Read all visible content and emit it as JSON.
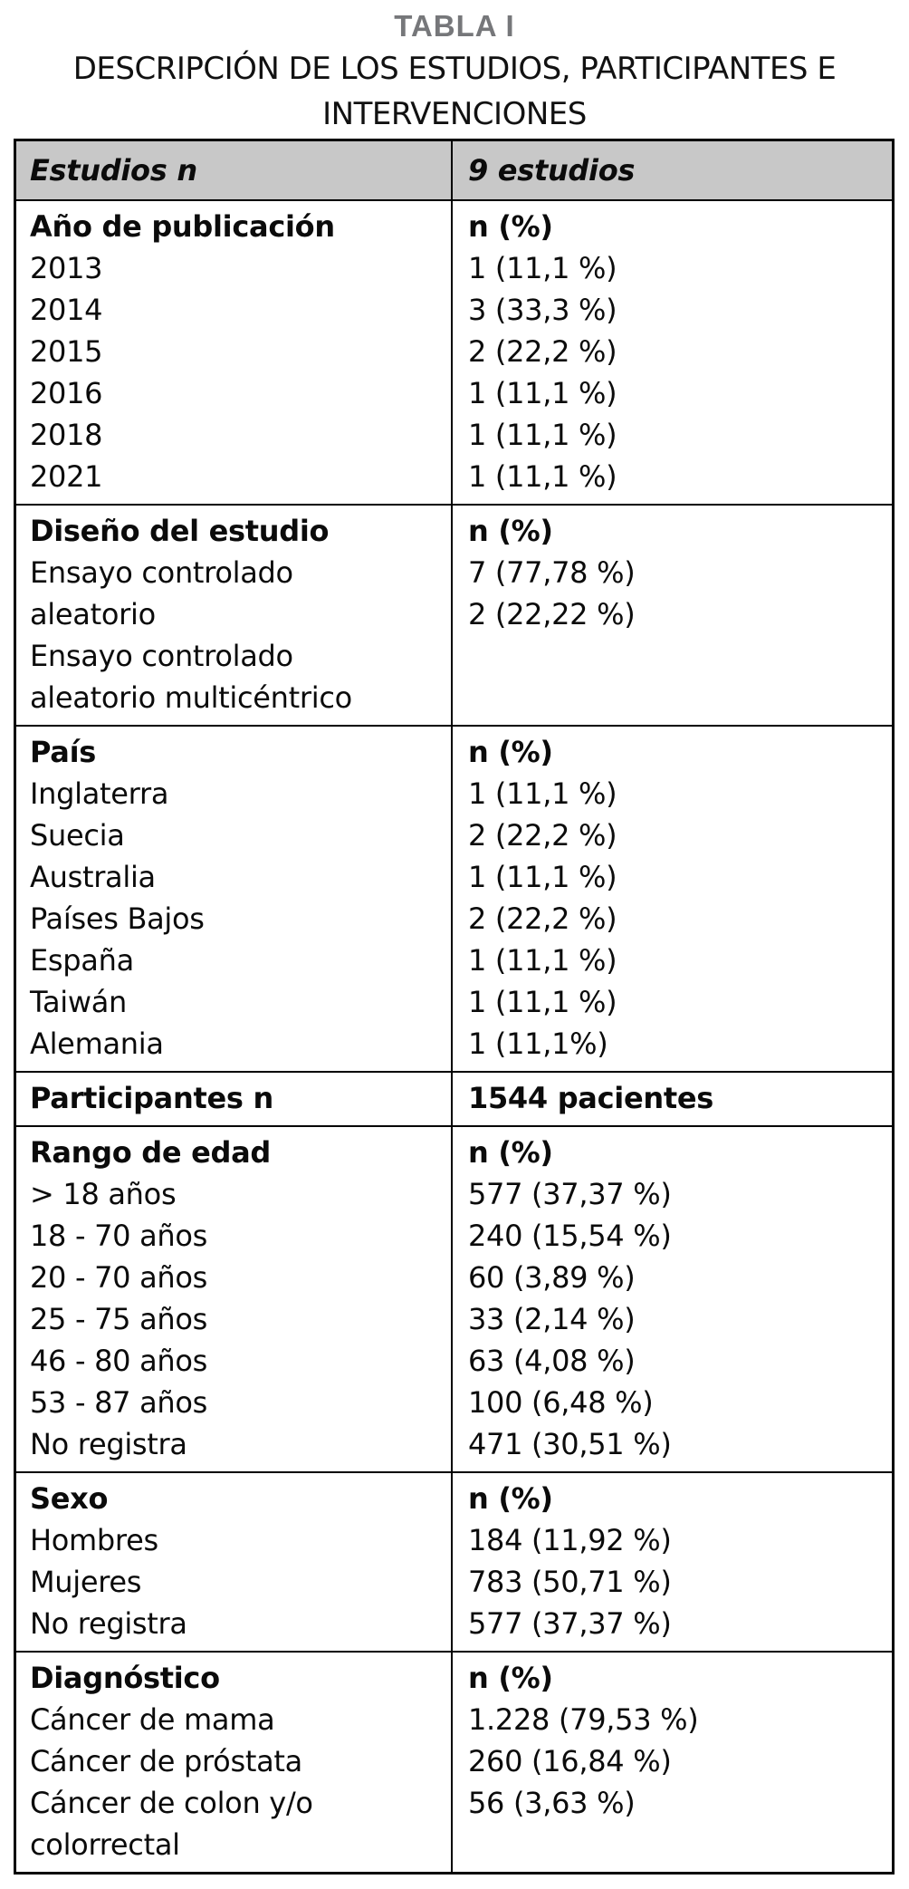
{
  "page": {
    "kicker": "TABLA I",
    "title_line1": "DESCRIPCIÓN DE LOS ESTUDIOS, PARTICIPANTES E",
    "title_line2": "INTERVENCIONES"
  },
  "colors": {
    "header_background": "#c8c8c8",
    "kicker_gray": "#76777a",
    "border": "#000000",
    "text": "#0b0b0b"
  },
  "table": {
    "header": {
      "left": "Estudios n",
      "right": "9 estudios"
    },
    "sections": [
      {
        "label": "Año de publicación",
        "value_label": "n (%)",
        "left_lines": [
          "2013",
          "2014",
          "2015",
          "2016",
          "2018",
          "2021"
        ],
        "right_lines": [
          "1 (11,1 %)",
          "3 (33,3 %)",
          "2 (22,2 %)",
          "1 (11,1 %)",
          "1 (11,1 %)",
          "1 (11,1 %)"
        ]
      },
      {
        "label": "Diseño del estudio",
        "value_label": "n (%)",
        "left_lines": [
          "Ensayo controlado",
          "aleatorio",
          "Ensayo controlado",
          "aleatorio multicéntrico"
        ],
        "right_lines": [
          "7 (77,78 %)",
          "2 (22,22 %)"
        ]
      },
      {
        "label": "País",
        "value_label": "n (%)",
        "left_lines": [
          "Inglaterra",
          "Suecia",
          "Australia",
          "Países Bajos",
          "España",
          "Taiwán",
          "Alemania"
        ],
        "right_lines": [
          "1 (11,1 %)",
          "2 (22,2 %)",
          "1 (11,1 %)",
          "2 (22,2 %)",
          "1 (11,1 %)",
          "1 (11,1 %)",
          "1 (11,1%)"
        ]
      },
      {
        "label": "Participantes n",
        "value_label": "1544 pacientes",
        "left_lines": [],
        "right_lines": []
      },
      {
        "label": "Rango de edad",
        "value_label": "n (%)",
        "left_lines": [
          "> 18 años",
          "18 - 70 años",
          "20 - 70 años",
          "25 - 75 años",
          "46 - 80 años",
          "53 - 87 años",
          "No registra"
        ],
        "right_lines": [
          "577 (37,37 %)",
          "240 (15,54 %)",
          "60 (3,89 %)",
          "33 (2,14 %)",
          "63 (4,08 %)",
          "100 (6,48 %)",
          "471 (30,51 %)"
        ]
      },
      {
        "label": "Sexo",
        "value_label": "n (%)",
        "left_lines": [
          "Hombres",
          "Mujeres",
          "No registra"
        ],
        "right_lines": [
          "184 (11,92 %)",
          "783 (50,71 %)",
          "577 (37,37 %)"
        ]
      },
      {
        "label": "Diagnóstico",
        "value_label": "n (%)",
        "left_lines": [
          "Cáncer de mama",
          "Cáncer de próstata",
          "Cáncer de colon y/o",
          "colorrectal"
        ],
        "right_lines": [
          "1.228 (79,53 %)",
          "260 (16,84 %)",
          "56 (3,63 %)"
        ]
      }
    ]
  }
}
